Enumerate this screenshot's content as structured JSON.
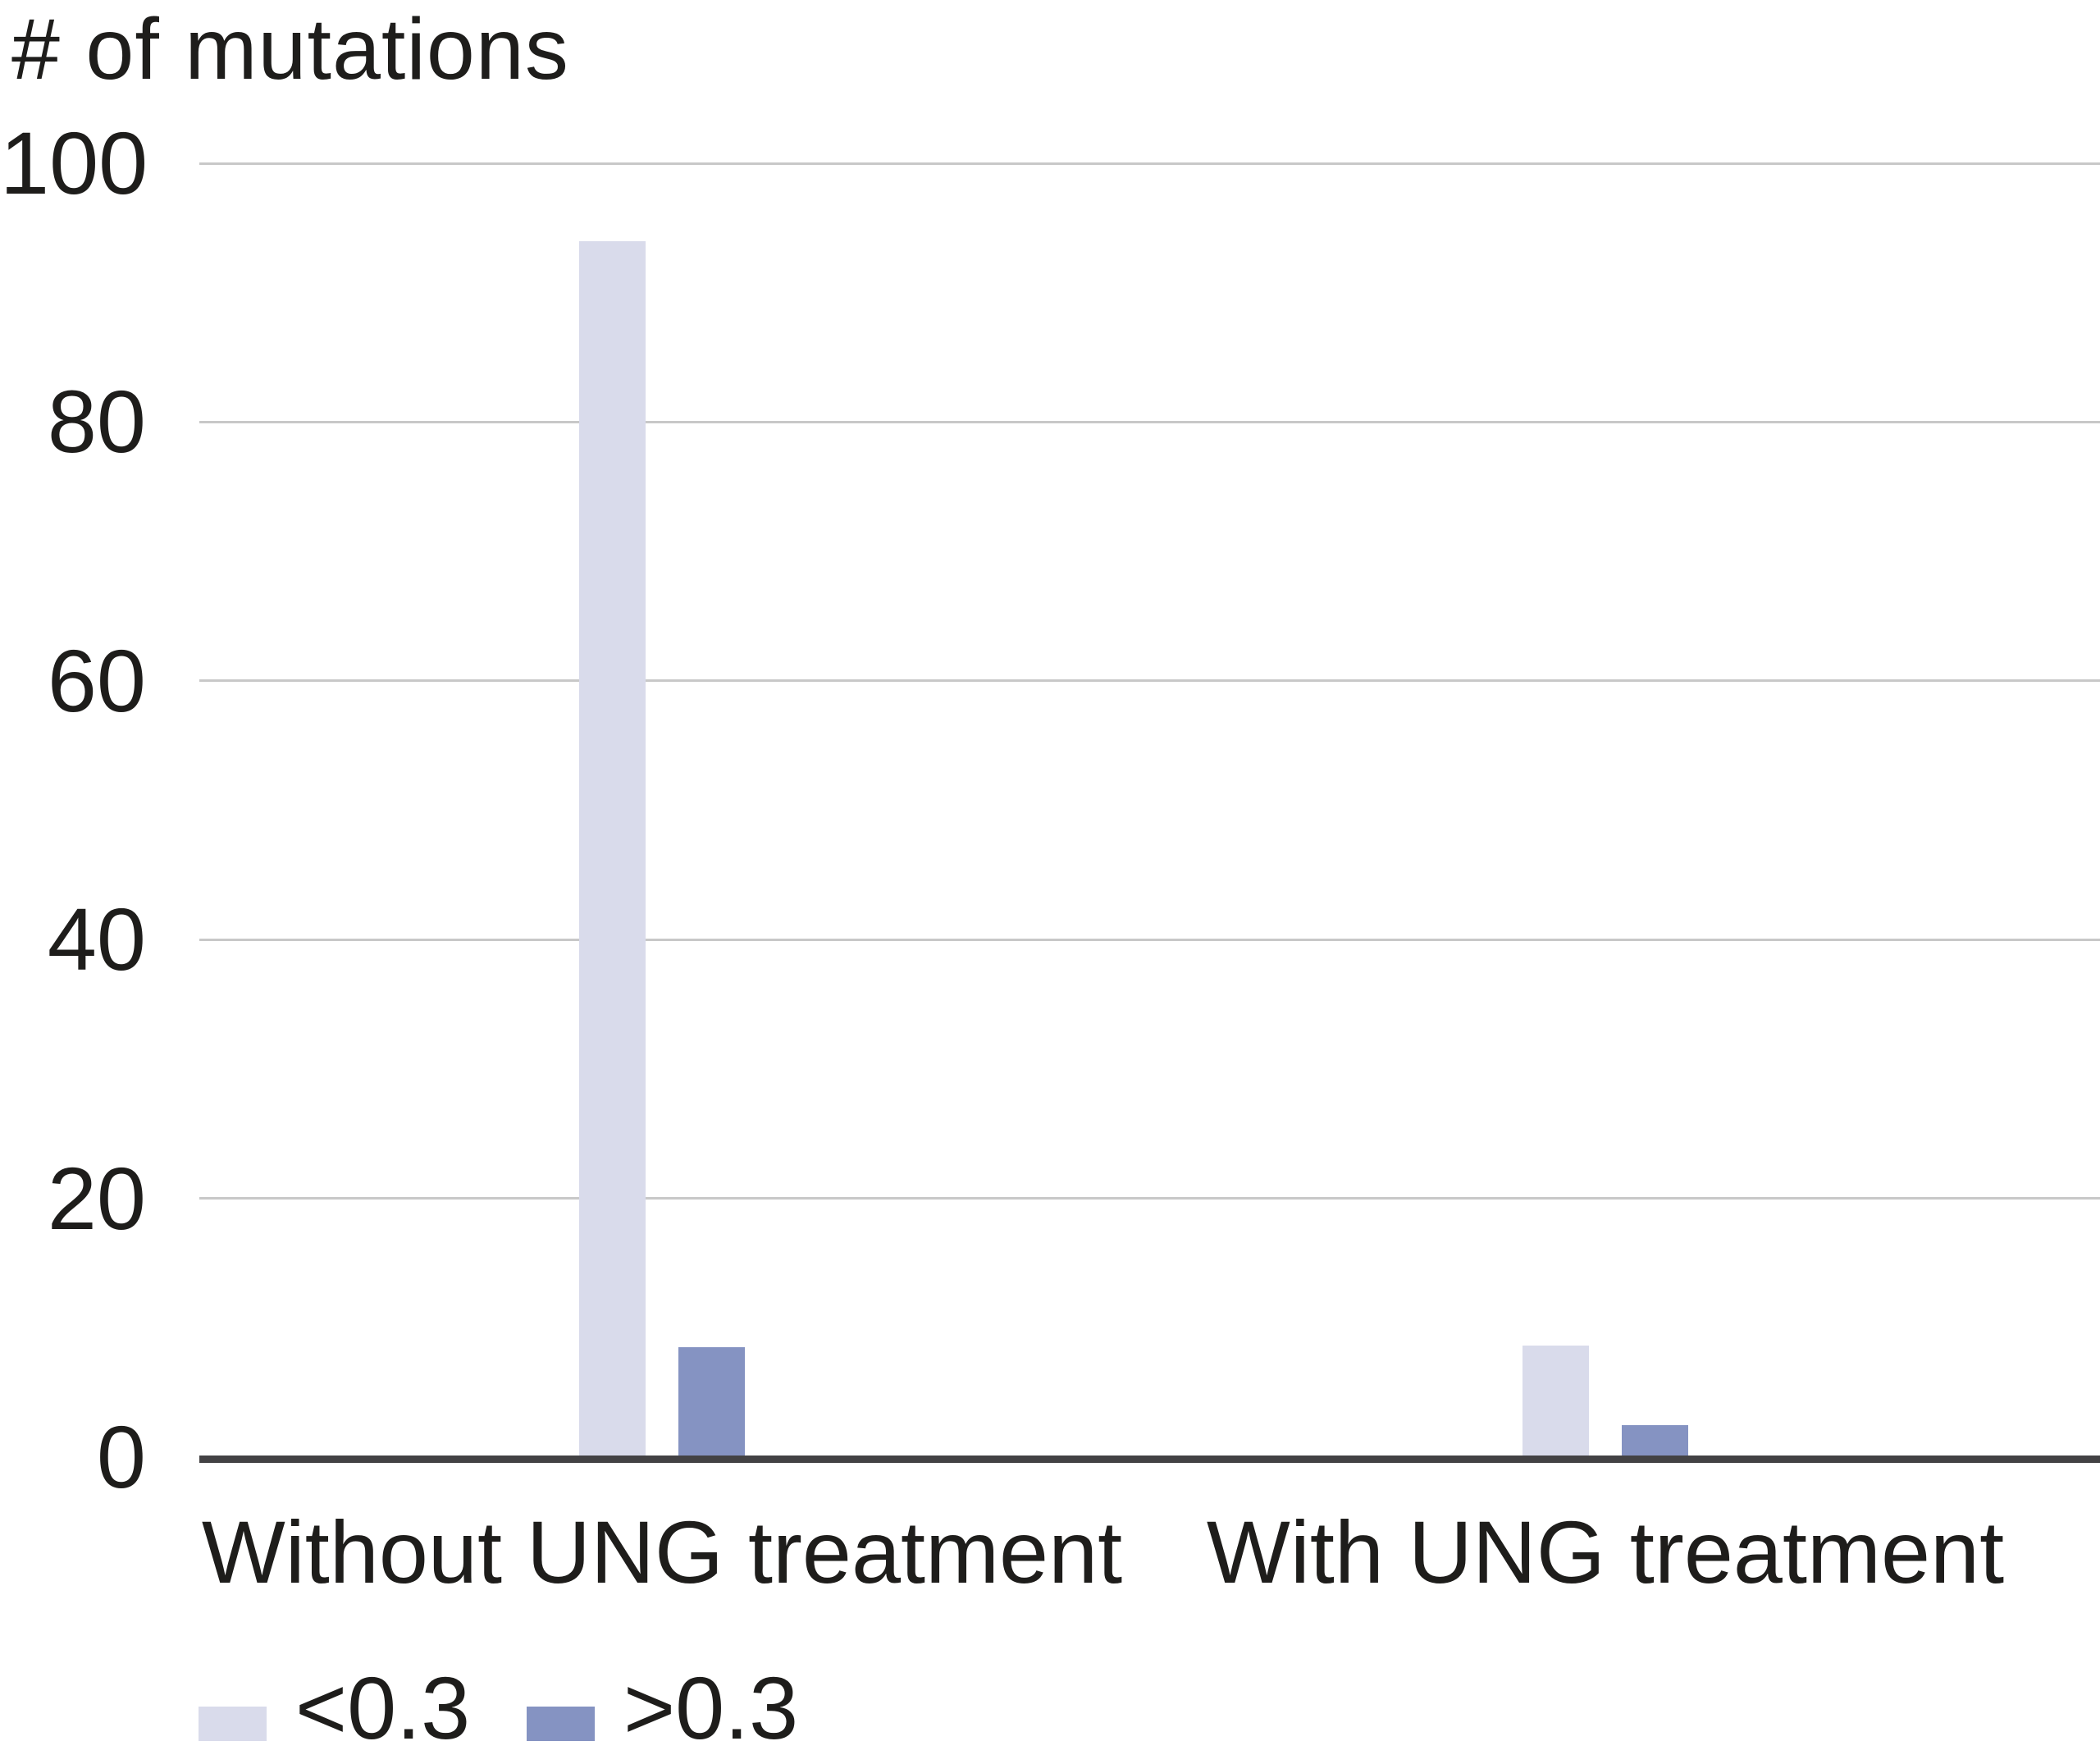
{
  "chart_data": {
    "type": "bar",
    "title": "# of mutations",
    "categories": [
      "Without UNG treatment",
      "With UNG treatment"
    ],
    "series": [
      {
        "name": "<0.3",
        "color": "#d9dbeb",
        "values": [
          94,
          8.6
        ]
      },
      {
        "name": ">0.3",
        "color": "#8593c2",
        "values": [
          8.5,
          2.5
        ]
      }
    ],
    "xlabel": "",
    "ylabel": "# of mutations",
    "ylim": [
      0,
      100
    ],
    "yticks": [
      0,
      20,
      40,
      60,
      80,
      100
    ],
    "grid": true,
    "legend_position": "bottom-left"
  },
  "colors": {
    "grid": "#c8c8c8",
    "axis": "#434244",
    "text": "#1e1d1b",
    "background": "#ffffff"
  }
}
